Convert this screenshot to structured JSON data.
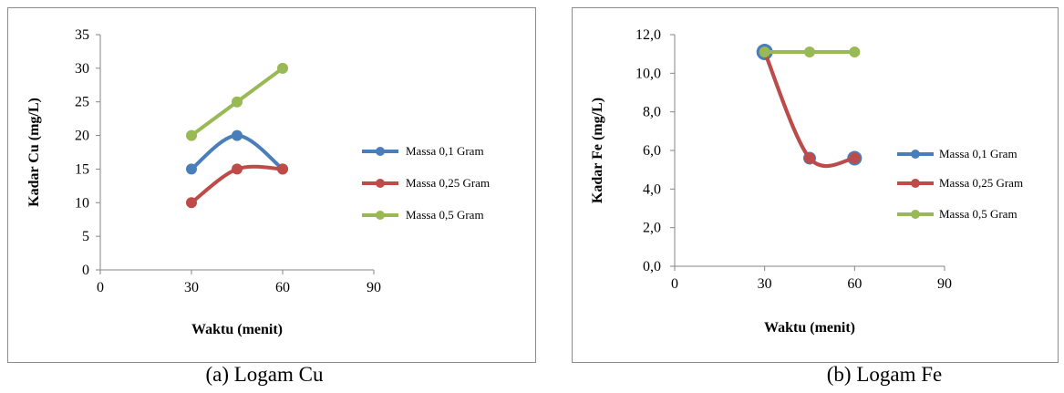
{
  "figure_captions": [
    "(a)  Logam Cu",
    "(b) Logam Fe"
  ],
  "chart_data": [
    {
      "type": "line",
      "xlabel": "Waktu (menit)",
      "ylabel": "Kadar Cu (mg/L)",
      "xlim": [
        0,
        90
      ],
      "ylim": [
        0,
        35
      ],
      "xticks": [
        "0",
        "30",
        "60",
        "90"
      ],
      "xtick_values": [
        0,
        30,
        60,
        90
      ],
      "yticks": [
        "0",
        "5",
        "10",
        "15",
        "20",
        "25",
        "30",
        "35"
      ],
      "ytick_values": [
        0,
        5,
        10,
        15,
        20,
        25,
        30,
        35
      ],
      "smooth": true,
      "grid": false,
      "legend_position": "right",
      "x": [
        30,
        45,
        60
      ],
      "series": [
        {
          "name": "Massa 0,1 Gram",
          "color": "#4a7ebb",
          "values": [
            15,
            20,
            15
          ]
        },
        {
          "name": "Massa 0,25 Gram",
          "color": "#be4b48",
          "values": [
            10,
            15,
            15
          ]
        },
        {
          "name": "Massa 0,5 Gram",
          "color": "#98b954",
          "values": [
            20,
            25,
            30
          ]
        }
      ]
    },
    {
      "type": "line",
      "xlabel": "Waktu (menit)",
      "ylabel": "Kadar Fe (mg/L)",
      "xlim": [
        0,
        90
      ],
      "ylim": [
        0,
        12
      ],
      "xticks": [
        "0",
        "30",
        "60",
        "90"
      ],
      "xtick_values": [
        0,
        30,
        60,
        90
      ],
      "yticks": [
        "0,0",
        "2,0",
        "4,0",
        "6,0",
        "8,0",
        "10,0",
        "12,0"
      ],
      "ytick_values": [
        0,
        2,
        4,
        6,
        8,
        10,
        12
      ],
      "smooth": true,
      "grid": false,
      "legend_position": "right",
      "x": [
        30,
        45,
        60
      ],
      "series": [
        {
          "name": "Massa 0,1 Gram",
          "color": "#4a7ebb",
          "values": [
            11.1,
            5.6,
            5.6
          ]
        },
        {
          "name": "Massa 0,25 Gram",
          "color": "#be4b48",
          "values": [
            11.1,
            5.6,
            5.6
          ]
        },
        {
          "name": "Massa 0,5 Gram",
          "color": "#98b954",
          "values": [
            11.1,
            11.1,
            11.1
          ]
        }
      ]
    }
  ]
}
